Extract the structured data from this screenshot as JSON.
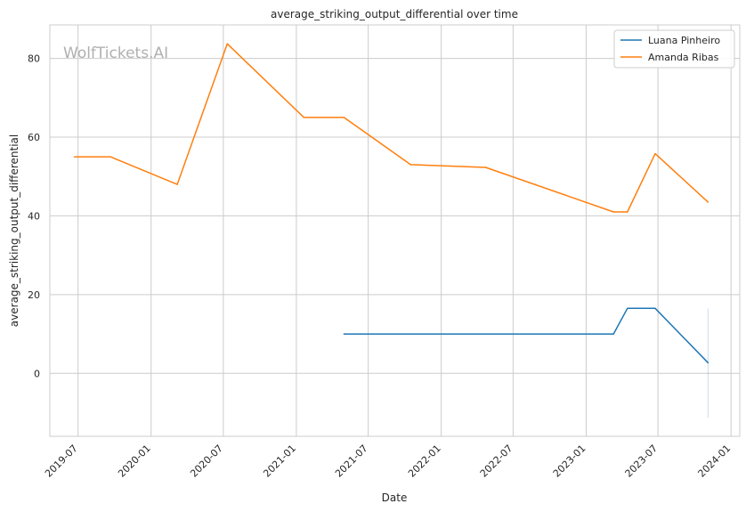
{
  "chart_data": {
    "type": "line",
    "title": "average_striking_output_differential over time",
    "xlabel": "Date",
    "ylabel": "average_striking_output_differential",
    "watermark": "WolfTickets.AI",
    "xlim": [
      "2019-04-21",
      "2024-01-23"
    ],
    "ylim": [
      -16,
      88.5
    ],
    "x_ticks": [
      "2019-07",
      "2020-01",
      "2020-07",
      "2021-01",
      "2021-07",
      "2022-01",
      "2022-07",
      "2023-01",
      "2023-07",
      "2024-01"
    ],
    "y_ticks": [
      0,
      20,
      40,
      60,
      80
    ],
    "grid": true,
    "legend_position": "top-right",
    "series": [
      {
        "name": "Luana Pinheiro",
        "color": "#1f77b4",
        "points": [
          {
            "x": "2021-05-01",
            "y": 10
          },
          {
            "x": "2023-03-11",
            "y": 10
          },
          {
            "x": "2023-04-15",
            "y": 16.5
          },
          {
            "x": "2023-06-24",
            "y": 16.5
          },
          {
            "x": "2023-11-04",
            "y": 2.7
          }
        ],
        "error_band": {
          "x": "2023-11-04",
          "low": -11.3,
          "high": 16.5
        }
      },
      {
        "name": "Amanda Ribas",
        "color": "#ff7f0e",
        "points": [
          {
            "x": "2019-06-22",
            "y": 55
          },
          {
            "x": "2019-09-21",
            "y": 55
          },
          {
            "x": "2020-03-07",
            "y": 48
          },
          {
            "x": "2020-07-11",
            "y": 83.7
          },
          {
            "x": "2021-01-20",
            "y": 65
          },
          {
            "x": "2021-05-01",
            "y": 65
          },
          {
            "x": "2021-10-16",
            "y": 53
          },
          {
            "x": "2022-04-23",
            "y": 52.3
          },
          {
            "x": "2023-03-11",
            "y": 41
          },
          {
            "x": "2023-04-15",
            "y": 41
          },
          {
            "x": "2023-06-24",
            "y": 55.8
          },
          {
            "x": "2023-11-04",
            "y": 43.5
          }
        ]
      }
    ]
  }
}
